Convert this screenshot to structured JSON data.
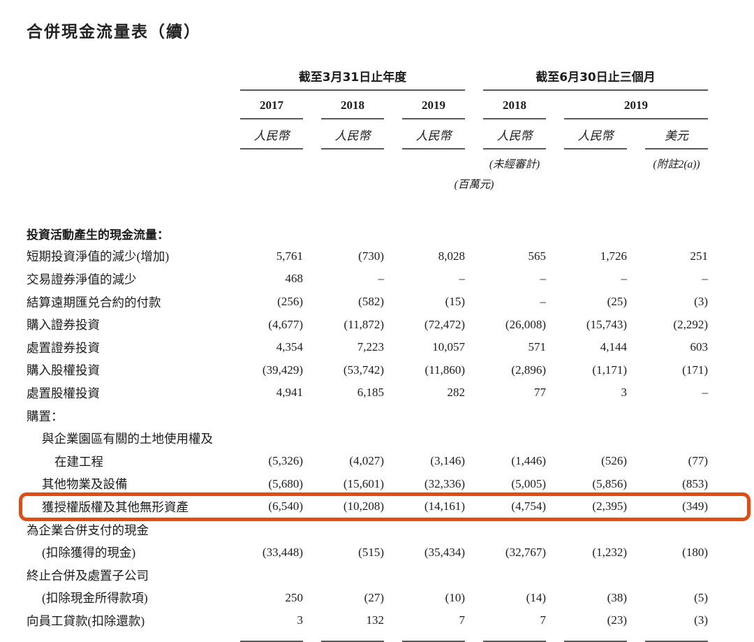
{
  "page": {
    "title": "合併現金流量表（續）"
  },
  "highlight_color": "#e84a0e",
  "table": {
    "col_groups": [
      {
        "label": "截至3月31日止年度",
        "span": 3
      },
      {
        "label": "截至6月30日止三個月",
        "span": 3
      }
    ],
    "years": [
      {
        "label": "2017"
      },
      {
        "label": "2018"
      },
      {
        "label": "2019"
      },
      {
        "label": "2018"
      },
      {
        "label": "2019"
      }
    ],
    "currencies": [
      "人民幣",
      "人民幣",
      "人民幣",
      "人民幣",
      "人民幣",
      "美元"
    ],
    "notes": {
      "unaudited": "(未經審計)",
      "note2a": "(附註2(a))",
      "unit": "(百萬元)"
    },
    "rows": [
      {
        "label": "投資活動產生的現金流量：",
        "indent": 0,
        "bold": true,
        "values": null
      },
      {
        "label": "短期投資淨值的減少(增加)",
        "indent": 0,
        "values": [
          "5,761",
          "(730)",
          "8,028",
          "565",
          "1,726",
          "251"
        ]
      },
      {
        "label": "交易證券淨值的減少",
        "indent": 0,
        "values": [
          "468",
          "–",
          "–",
          "–",
          "–",
          "–"
        ]
      },
      {
        "label": "結算遠期匯兑合約的付款",
        "indent": 0,
        "values": [
          "(256)",
          "(582)",
          "(15)",
          "–",
          "(25)",
          "(3)"
        ]
      },
      {
        "label": "購入證券投資",
        "indent": 0,
        "values": [
          "(4,677)",
          "(11,872)",
          "(72,472)",
          "(26,008)",
          "(15,743)",
          "(2,292)"
        ]
      },
      {
        "label": "處置證券投資",
        "indent": 0,
        "values": [
          "4,354",
          "7,223",
          "10,057",
          "571",
          "4,144",
          "603"
        ]
      },
      {
        "label": "購入股權投資",
        "indent": 0,
        "values": [
          "(39,429)",
          "(53,742)",
          "(11,860)",
          "(2,896)",
          "(1,171)",
          "(171)"
        ]
      },
      {
        "label": "處置股權投資",
        "indent": 0,
        "values": [
          "4,941",
          "6,185",
          "282",
          "77",
          "3",
          "–"
        ]
      },
      {
        "label": "購置：",
        "indent": 0,
        "values": null
      },
      {
        "label": "與企業園區有關的土地使用權及",
        "indent": 1,
        "values": null
      },
      {
        "label": "在建工程",
        "indent": 2,
        "values": [
          "(5,326)",
          "(4,027)",
          "(3,146)",
          "(1,446)",
          "(526)",
          "(77)"
        ]
      },
      {
        "label": "其他物業及設備",
        "indent": 1,
        "values": [
          "(5,680)",
          "(15,601)",
          "(32,336)",
          "(5,005)",
          "(5,856)",
          "(853)"
        ]
      },
      {
        "label": "獲授權版權及其他無形資產",
        "indent": 1,
        "highlighted": true,
        "values": [
          "(6,540)",
          "(10,208)",
          "(14,161)",
          "(4,754)",
          "(2,395)",
          "(349)"
        ]
      },
      {
        "label": "為企業合併支付的現金",
        "indent": 0,
        "values": null
      },
      {
        "label": "(扣除獲得的現金)",
        "indent": 1,
        "values": [
          "(33,448)",
          "(515)",
          "(35,434)",
          "(32,767)",
          "(1,232)",
          "(180)"
        ]
      },
      {
        "label": "終止合併及處置子公司",
        "indent": 0,
        "values": null
      },
      {
        "label": "(扣除現金所得款項)",
        "indent": 1,
        "values": [
          "250",
          "(27)",
          "(10)",
          "(14)",
          "(38)",
          "(5)"
        ]
      },
      {
        "label": "向員工貸款(扣除還款)",
        "indent": 0,
        "values": [
          "3",
          "132",
          "7",
          "7",
          "(23)",
          "(3)"
        ]
      }
    ]
  }
}
